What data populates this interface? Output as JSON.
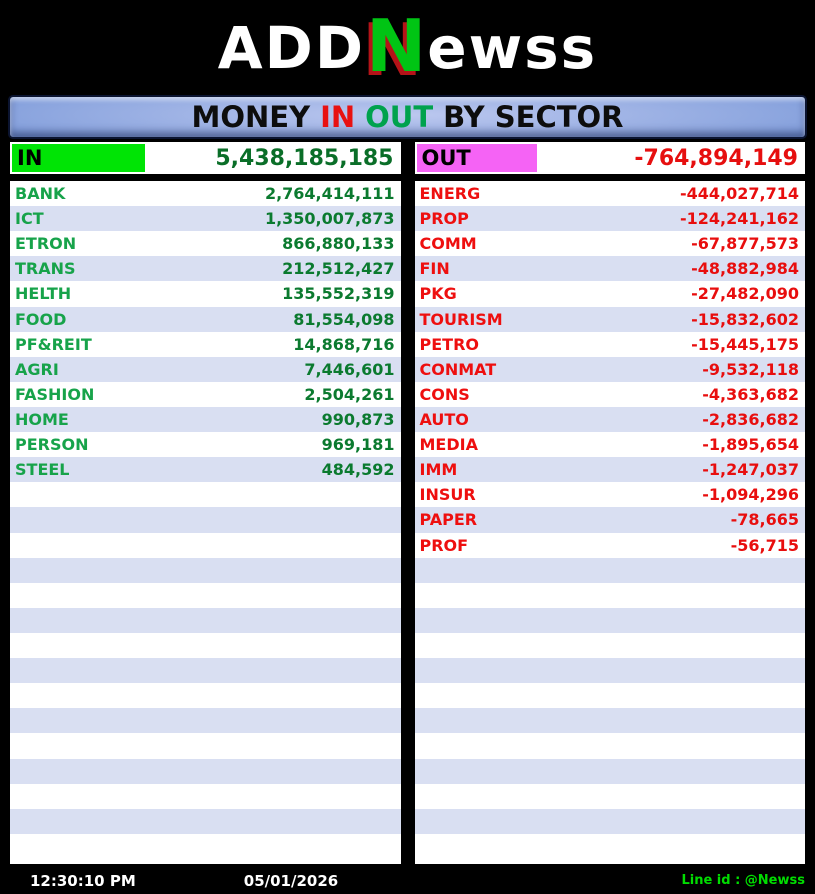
{
  "logo": {
    "part1": "ADD",
    "n": "N",
    "part2": "ewss"
  },
  "title": {
    "money": "MONEY",
    "in": "IN",
    "out": "OUT",
    "rest": "BY SECTOR"
  },
  "in_panel": {
    "label": "IN",
    "total": "5,438,185,185",
    "row_slots": 27,
    "rows": [
      {
        "sector": "BANK",
        "value": "2,764,414,111"
      },
      {
        "sector": "ICT",
        "value": "1,350,007,873"
      },
      {
        "sector": "ETRON",
        "value": "866,880,133"
      },
      {
        "sector": "TRANS",
        "value": "212,512,427"
      },
      {
        "sector": "HELTH",
        "value": "135,552,319"
      },
      {
        "sector": "FOOD",
        "value": "81,554,098"
      },
      {
        "sector": "PF&REIT",
        "value": "14,868,716"
      },
      {
        "sector": "AGRI",
        "value": "7,446,601"
      },
      {
        "sector": "FASHION",
        "value": "2,504,261"
      },
      {
        "sector": "HOME",
        "value": "990,873"
      },
      {
        "sector": "PERSON",
        "value": "969,181"
      },
      {
        "sector": "STEEL",
        "value": "484,592"
      }
    ]
  },
  "out_panel": {
    "label": "OUT",
    "total": "-764,894,149",
    "row_slots": 27,
    "rows": [
      {
        "sector": "ENERG",
        "value": "-444,027,714"
      },
      {
        "sector": "PROP",
        "value": "-124,241,162"
      },
      {
        "sector": "COMM",
        "value": "-67,877,573"
      },
      {
        "sector": "FIN",
        "value": "-48,882,984"
      },
      {
        "sector": "PKG",
        "value": "-27,482,090"
      },
      {
        "sector": "TOURISM",
        "value": "-15,832,602"
      },
      {
        "sector": "PETRO",
        "value": "-15,445,175"
      },
      {
        "sector": "CONMAT",
        "value": "-9,532,118"
      },
      {
        "sector": "CONS",
        "value": "-4,363,682"
      },
      {
        "sector": "AUTO",
        "value": "-2,836,682"
      },
      {
        "sector": "MEDIA",
        "value": "-1,895,654"
      },
      {
        "sector": "IMM",
        "value": "-1,247,037"
      },
      {
        "sector": "INSUR",
        "value": "-1,094,296"
      },
      {
        "sector": "PAPER",
        "value": "-78,665"
      },
      {
        "sector": "PROF",
        "value": "-56,715"
      }
    ]
  },
  "footer": {
    "time": "12:30:10 PM",
    "date": "05/01/2026",
    "line_id": "Line id : @Newss"
  },
  "colors": {
    "in_header_bg": "#00e405",
    "out_header_bg": "#f563f5",
    "row_alt_bg": "#d9dff2",
    "sector_green": "#17a34a",
    "value_green": "#0b7a2f",
    "sector_red": "#ee0f0f",
    "title_blue_light": "#bcc8ef",
    "title_blue_dark": "#4a72c4",
    "footer_green": "#00dd00"
  }
}
